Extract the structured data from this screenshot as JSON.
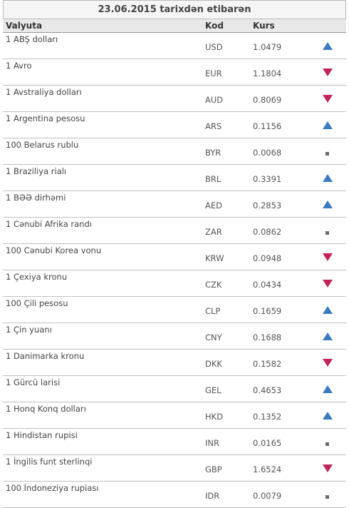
{
  "header": {
    "date_title": "23.06.2015 tarixdən etibarən"
  },
  "columns": {
    "currency": "Valyuta",
    "code": "Kod",
    "rate": "Kurs"
  },
  "colors": {
    "up": "#3a7bbf",
    "down": "#c0245a",
    "flat": "#6b6b6b"
  },
  "rows": [
    {
      "name": "1 ABŞ dolları",
      "code": "USD",
      "rate": "1.0479",
      "trend": "up"
    },
    {
      "name": "1 Avro",
      "code": "EUR",
      "rate": "1.1804",
      "trend": "down"
    },
    {
      "name": "1 Avstraliya dolları",
      "code": "AUD",
      "rate": "0.8069",
      "trend": "down"
    },
    {
      "name": "1 Argentina pesosu",
      "code": "ARS",
      "rate": "0.1156",
      "trend": "up"
    },
    {
      "name": "100 Belarus rublu",
      "code": "BYR",
      "rate": "0.0068",
      "trend": "flat"
    },
    {
      "name": "1 Braziliya rialı",
      "code": "BRL",
      "rate": "0.3391",
      "trend": "up"
    },
    {
      "name": "1 BƏƏ dirhəmi",
      "code": "AED",
      "rate": "0.2853",
      "trend": "up"
    },
    {
      "name": "1 Cənubi Afrika randı",
      "code": "ZAR",
      "rate": "0.0862",
      "trend": "flat"
    },
    {
      "name": "100 Cənubi Korea vonu",
      "code": "KRW",
      "rate": "0.0948",
      "trend": "down"
    },
    {
      "name": "1 Çexiya kronu",
      "code": "CZK",
      "rate": "0.0434",
      "trend": "down"
    },
    {
      "name": "100 Çili pesosu",
      "code": "CLP",
      "rate": "0.1659",
      "trend": "up"
    },
    {
      "name": "1 Çin yuanı",
      "code": "CNY",
      "rate": "0.1688",
      "trend": "up"
    },
    {
      "name": "1 Danimarka kronu",
      "code": "DKK",
      "rate": "0.1582",
      "trend": "down"
    },
    {
      "name": "1 Gürcü larisi",
      "code": "GEL",
      "rate": "0.4653",
      "trend": "up"
    },
    {
      "name": "1 Honq Konq dolları",
      "code": "HKD",
      "rate": "0.1352",
      "trend": "up"
    },
    {
      "name": "1 Hindistan rupisi",
      "code": "INR",
      "rate": "0.0165",
      "trend": "flat"
    },
    {
      "name": "1 İngilis funt sterlinqi",
      "code": "GBP",
      "rate": "1.6524",
      "trend": "down"
    },
    {
      "name": "100 İndoneziya rupiası",
      "code": "IDR",
      "rate": "0.0079",
      "trend": "flat"
    }
  ]
}
